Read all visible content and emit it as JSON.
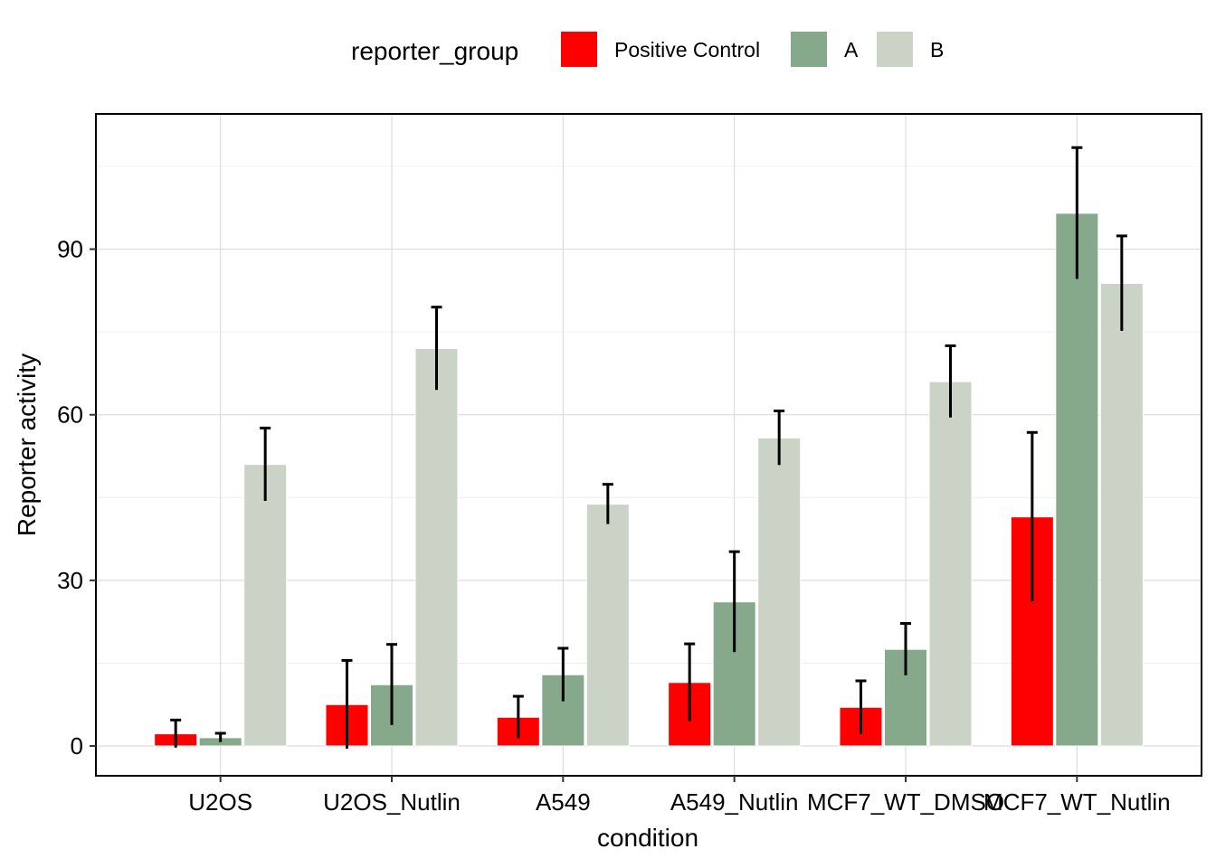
{
  "chart_data": {
    "type": "bar",
    "xlabel": "condition",
    "ylabel": "Reporter activity",
    "categories": [
      "U2OS",
      "U2OS_Nutlin",
      "A549",
      "A549_Nutlin",
      "MCF7_WT_DMSO",
      "MCF7_WT_Nutlin"
    ],
    "ylim": [
      -5.4,
      114.5
    ],
    "yticks": [
      0,
      30,
      60,
      90
    ],
    "grid": true,
    "legend": {
      "title": "reporter_group",
      "placement": "top"
    },
    "series": [
      {
        "name": "Positive Control",
        "color": "#FF0000",
        "values": [
          2.2,
          7.5,
          5.2,
          11.5,
          7.0,
          41.5
        ],
        "error": [
          2.5,
          8.0,
          3.8,
          7.0,
          4.8,
          15.3
        ]
      },
      {
        "name": "A",
        "color": "#86A98C",
        "values": [
          1.5,
          11.1,
          12.9,
          26.1,
          17.5,
          96.5
        ],
        "error": [
          0.8,
          7.3,
          4.8,
          9.1,
          4.7,
          11.9
        ]
      },
      {
        "name": "B",
        "color": "#CBD3C7",
        "values": [
          51.0,
          72.0,
          43.8,
          55.8,
          66.0,
          83.8
        ],
        "error": [
          6.6,
          7.5,
          3.6,
          4.9,
          6.5,
          8.6
        ]
      }
    ]
  }
}
